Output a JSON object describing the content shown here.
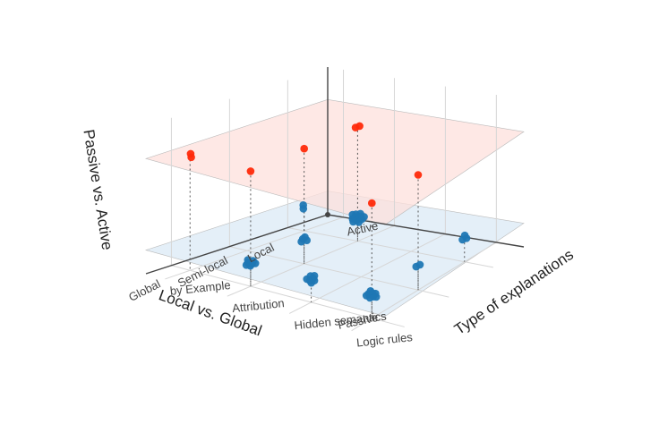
{
  "chart_data": {
    "type": "scatter",
    "title": "",
    "axes": {
      "x": {
        "label": "Local vs. Global",
        "ticks": [
          "Local",
          "Semi-local",
          "Global"
        ]
      },
      "y": {
        "label": "Type of explanations",
        "ticks": [
          "Logic rules",
          "Hidden semantics",
          "Attribution",
          "by Example"
        ]
      },
      "z": {
        "label": "Passive vs. Active",
        "ticks": [
          "Passive",
          "Active"
        ]
      }
    },
    "planes": [
      {
        "level": "Passive",
        "color": "#dbe9f6"
      },
      {
        "level": "Active",
        "color": "#fde0dc"
      }
    ],
    "series": [
      {
        "color": "#1f77b4",
        "points": [
          {
            "x": "Local",
            "y": "Logic rules",
            "z": "Passive",
            "count": 3
          },
          {
            "x": "Local",
            "y": "Attribution",
            "z": "Passive",
            "count": 12
          },
          {
            "x": "Local",
            "y": "by Example",
            "z": "Passive",
            "count": 2
          },
          {
            "x": "Semi-local",
            "y": "Logic rules",
            "z": "Passive",
            "count": 2
          },
          {
            "x": "Semi-local",
            "y": "Attribution",
            "z": "Passive",
            "count": 4
          },
          {
            "x": "Global",
            "y": "Logic rules",
            "z": "Passive",
            "count": 8
          },
          {
            "x": "Global",
            "y": "Hidden semantics",
            "z": "Passive",
            "count": 7
          },
          {
            "x": "Global",
            "y": "Attribution",
            "z": "Passive",
            "count": 7
          }
        ]
      },
      {
        "color": "#ff2a0a",
        "points": [
          {
            "x": "Local",
            "y": "Attribution",
            "z": "Active",
            "count": 2
          },
          {
            "x": "Semi-local",
            "y": "Logic rules",
            "z": "Active",
            "count": 1
          },
          {
            "x": "Semi-local",
            "y": "Attribution",
            "z": "Active",
            "count": 1
          },
          {
            "x": "Global",
            "y": "Logic rules",
            "z": "Active",
            "count": 1
          },
          {
            "x": "Global",
            "y": "Attribution",
            "z": "Active",
            "count": 1
          },
          {
            "x": "Global",
            "y": "by Example",
            "z": "Active",
            "count": 2
          }
        ]
      }
    ],
    "grid": true,
    "legend": "none"
  }
}
